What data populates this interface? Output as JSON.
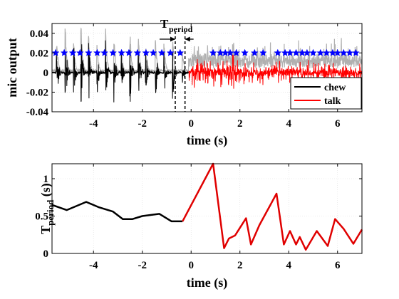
{
  "chart_data": [
    {
      "type": "line",
      "xlabel": "time (s)",
      "ylabel": "mic output",
      "xlim": [
        -5.7,
        7.0
      ],
      "ylim": [
        -0.04,
        0.05
      ],
      "xticks": [
        -4,
        -2,
        0,
        2,
        4,
        6
      ],
      "xtick_labels": [
        "-4",
        "-2",
        "0",
        "2",
        "4",
        "6"
      ],
      "yticks": [
        -0.04,
        -0.02,
        0,
        0.02,
        0.04
      ],
      "ytick_labels": [
        "-0.04",
        "-0.02",
        "0",
        "0.02",
        "0.04"
      ],
      "grid": true,
      "legend_position": "bottom-right",
      "series": [
        {
          "name": "chew",
          "color": "#000000",
          "x_range": [
            -5.7,
            -0.1
          ],
          "burst_times": [
            -5.5,
            -5.15,
            -4.8,
            -4.5,
            -4.2,
            -3.85,
            -3.5,
            -3.15,
            -2.85,
            -2.5,
            -2.15,
            -1.85,
            -1.45,
            -1.1,
            -0.75,
            -0.35
          ],
          "burst_amplitudes": [
            0.03,
            0.042,
            0.025,
            0.04,
            0.035,
            0.025,
            0.038,
            0.03,
            0.02,
            0.036,
            0.03,
            0.022,
            0.028,
            0.025,
            0.03,
            0.02
          ]
        },
        {
          "name": "talk",
          "color": "#ff0000",
          "x_range": [
            -0.1,
            7.0
          ],
          "peak_amplitude": 0.03
        },
        {
          "name": "envelope",
          "color": "#b0b0b0",
          "x_range": [
            -5.7,
            7.0
          ]
        },
        {
          "name": "peaks",
          "color": "#0000ff",
          "marker": "*",
          "y": 0.02,
          "x": [
            -5.55,
            -5.2,
            -4.85,
            -4.55,
            -4.2,
            -3.85,
            -3.55,
            -3.2,
            -2.85,
            -2.55,
            -2.2,
            -1.85,
            -1.55,
            -1.2,
            -0.85,
            -0.45,
            0.9,
            1.2,
            1.4,
            1.6,
            1.85,
            2.2,
            2.6,
            2.95,
            3.55,
            3.85,
            4.05,
            4.3,
            4.55,
            4.75,
            5.0,
            5.3,
            5.55,
            5.8,
            6.0,
            6.25,
            6.5,
            6.75
          ]
        }
      ],
      "annotation": {
        "text": "T",
        "subscript": "period",
        "markers_x": [
          -0.65,
          -0.25
        ]
      }
    },
    {
      "type": "line",
      "xlabel": "time (s)",
      "ylabel": "T",
      "ylabel_subscript": "period",
      "ylabel_suffix": " (s)",
      "xlim": [
        -5.7,
        7.0
      ],
      "ylim": [
        0,
        1.2
      ],
      "xticks": [
        -4,
        -2,
        0,
        2,
        4,
        6
      ],
      "xtick_labels": [
        "-4",
        "-2",
        "0",
        "2",
        "4",
        "6"
      ],
      "yticks": [
        0,
        0.5,
        1
      ],
      "ytick_labels": [
        "0",
        "0.5",
        "1"
      ],
      "grid": true,
      "series": [
        {
          "name": "chew",
          "color": "#000000",
          "x": [
            -5.7,
            -5.1,
            -4.3,
            -3.8,
            -3.2,
            -2.8,
            -2.4,
            -2.0,
            -1.3,
            -0.8,
            -0.35
          ],
          "y": [
            0.65,
            0.58,
            0.69,
            0.62,
            0.56,
            0.46,
            0.46,
            0.5,
            0.53,
            0.43,
            0.43
          ]
        },
        {
          "name": "talk",
          "color": "#e00000",
          "x": [
            -0.35,
            0.9,
            1.35,
            1.55,
            1.8,
            2.25,
            2.45,
            2.8,
            3.5,
            3.8,
            4.05,
            4.3,
            4.45,
            4.7,
            5.15,
            5.6,
            5.9,
            6.25,
            6.65,
            7.0
          ],
          "y": [
            0.43,
            1.2,
            0.07,
            0.2,
            0.24,
            0.47,
            0.12,
            0.38,
            0.8,
            0.12,
            0.3,
            0.12,
            0.22,
            0.05,
            0.3,
            0.1,
            0.46,
            0.33,
            0.13,
            0.32
          ]
        }
      ]
    }
  ]
}
